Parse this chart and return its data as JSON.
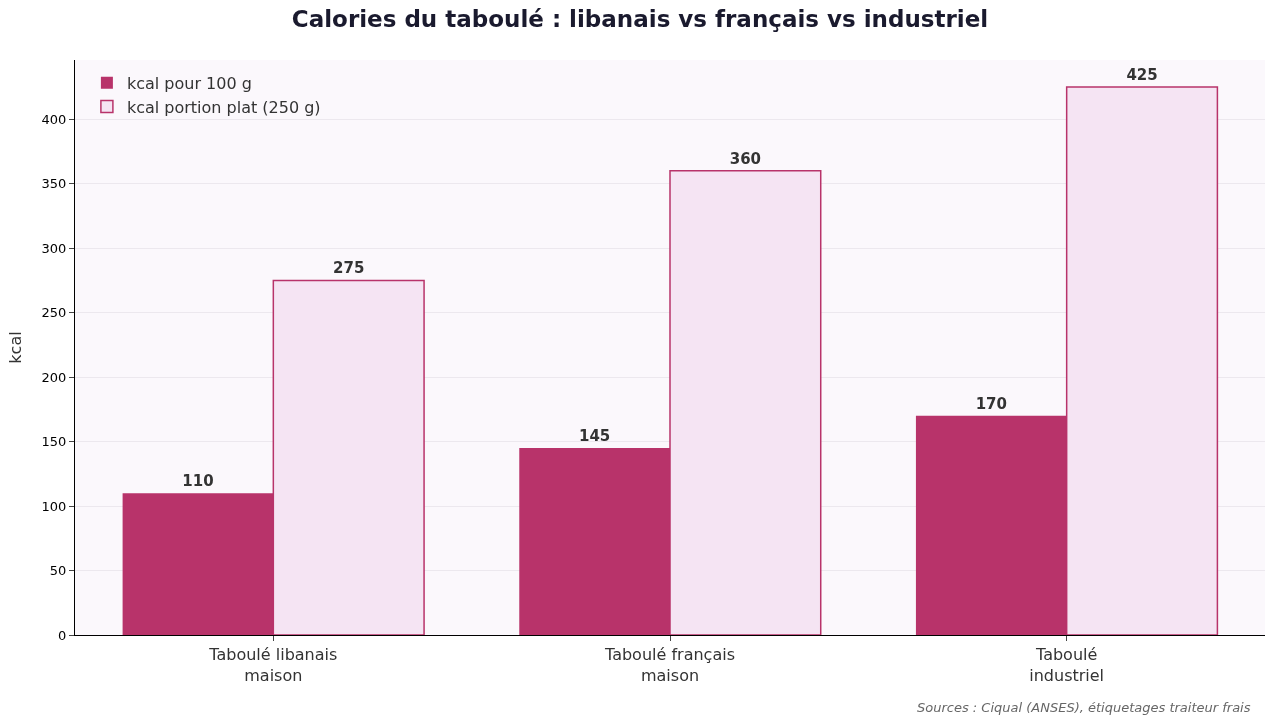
{
  "chart_data": {
    "type": "bar",
    "title": "Calories du taboulé : libanais vs français vs industriel",
    "ylabel": "kcal",
    "categories": [
      "Taboulé libanais\nmaison",
      "Taboulé français\nmaison",
      "Taboulé\nindustriel"
    ],
    "series": [
      {
        "name": "kcal pour 100 g",
        "color": "#b8336a",
        "values": [
          110,
          145,
          170
        ]
      },
      {
        "name": "kcal portion plat (250 g)",
        "color": "#f5e4f3",
        "values": [
          275,
          360,
          425
        ]
      }
    ],
    "ylim": [
      0,
      446
    ],
    "yticks": [
      0,
      50,
      100,
      150,
      200,
      250,
      300,
      350,
      400
    ],
    "grid": "y",
    "legend": "top left",
    "data_labels": true,
    "annotations": [
      "Sources : Ciqual (ANSES), étiquetages traiteur frais"
    ]
  }
}
